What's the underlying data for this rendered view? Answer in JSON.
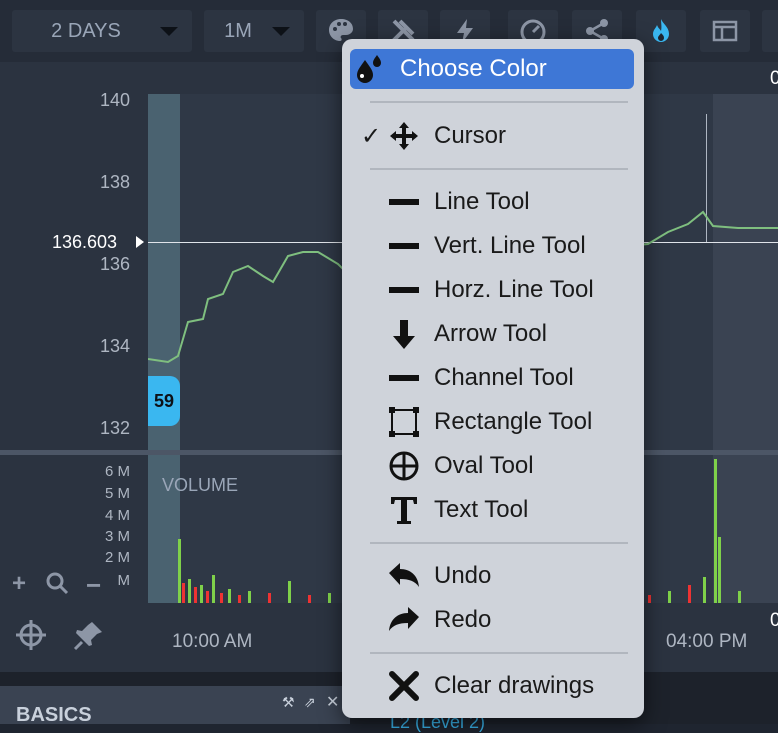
{
  "toolbar": {
    "range_label": "2 DAYS",
    "interval_label": "1M",
    "icons": [
      "palette-icon",
      "wrench-icon",
      "lightning-icon",
      "gauge-icon",
      "share-icon",
      "flame-icon",
      "layout-icon"
    ]
  },
  "chart": {
    "price_ticks": [
      "140",
      "138",
      "136",
      "134",
      "132"
    ],
    "current_price": "136.603",
    "badge": "59",
    "volume_title": "VOLUME",
    "volume_ticks": [
      "6 M",
      "5 M",
      "4 M",
      "3 M",
      "2 M",
      "M"
    ],
    "time_labels": [
      "10:00 AM",
      "04:00 PM"
    ],
    "edge_label": "0",
    "accent_color": "#3ab7f0"
  },
  "bottom": {
    "section_title": "BASICS",
    "level_text": "L2 (Level 2)"
  },
  "menu": {
    "items": [
      {
        "label": "Choose Color",
        "icon": "ink-drops-icon",
        "selected": true,
        "checked": false
      },
      {
        "label": "Cursor",
        "icon": "move-cursor-icon",
        "selected": false,
        "checked": true
      },
      {
        "label": "Line Tool",
        "icon": "line-icon"
      },
      {
        "label": "Vert. Line Tool",
        "icon": "line-icon"
      },
      {
        "label": "Horz. Line Tool",
        "icon": "line-icon"
      },
      {
        "label": "Arrow Tool",
        "icon": "arrow-down-icon"
      },
      {
        "label": "Channel Tool",
        "icon": "line-icon"
      },
      {
        "label": "Rectangle Tool",
        "icon": "rectangle-icon"
      },
      {
        "label": "Oval Tool",
        "icon": "crosshair-circle-icon"
      },
      {
        "label": "Text Tool",
        "icon": "text-t-icon"
      },
      {
        "label": "Undo",
        "icon": "undo-icon"
      },
      {
        "label": "Redo",
        "icon": "redo-icon"
      },
      {
        "label": "Clear drawings",
        "icon": "x-icon"
      }
    ],
    "check_mark": "✓",
    "selected_color": "#3e77d6"
  }
}
